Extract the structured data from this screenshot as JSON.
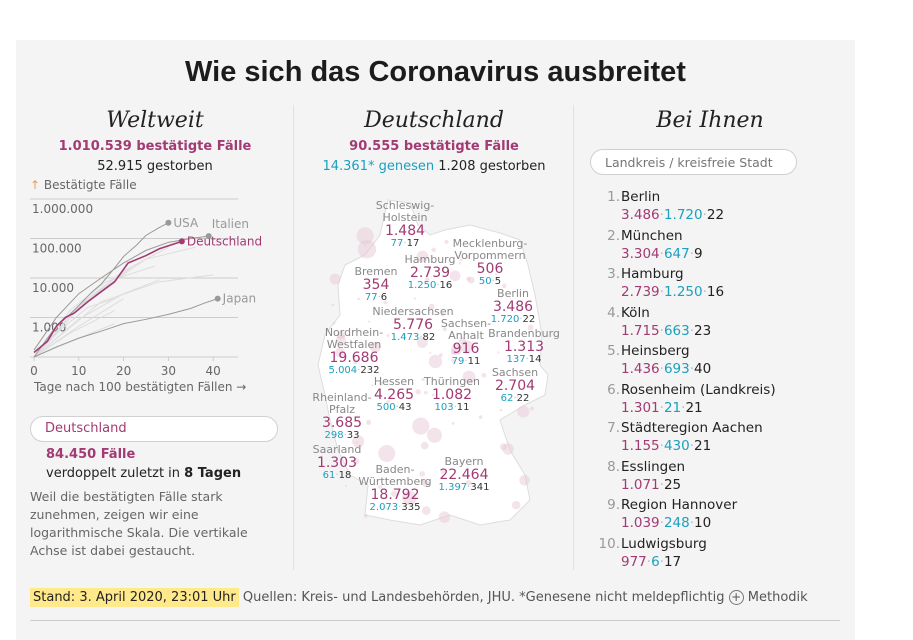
{
  "title": "Wie sich das Coronavirus ausbreitet",
  "weltweit": {
    "heading": "Weltweit",
    "cases": "1.010.539 bestätigte Fälle",
    "deaths": "52.915 gestorben",
    "country_select": "Deutschland",
    "country_cases": "84.450 Fälle",
    "doubling_prefix": "verdoppelt zuletzt in ",
    "doubling_value": "8 Tagen",
    "note": "Weil die bestätigten Fälle stark zunehmen, zeigen wir eine logarithmische Skala. Die vertikale Achse ist dabei gestaucht."
  },
  "chart_data": {
    "type": "line",
    "ylabel": "Bestätigte Fälle",
    "ylabel_icon": "arrow-up-icon",
    "xlabel": "Tage nach 100 bestätigten Fällen →",
    "yscale": "log",
    "ylim": [
      100,
      1000000
    ],
    "xlim": [
      0,
      46
    ],
    "yticks": [
      {
        "v": 1000,
        "label": "1.000"
      },
      {
        "v": 10000,
        "label": "10.000"
      },
      {
        "v": 100000,
        "label": "100.000"
      },
      {
        "v": 1000000,
        "label": "1.000.000"
      }
    ],
    "xticks": [
      0,
      10,
      20,
      30,
      40
    ],
    "grid": true,
    "highlight_color": "#a23a73",
    "label_color": "#999999",
    "series": [
      {
        "name": "USA",
        "x": [
          0,
          3,
          5,
          8,
          10,
          13,
          15,
          18,
          20,
          23,
          25,
          28,
          30
        ],
        "y": [
          100,
          300,
          600,
          1200,
          2000,
          4500,
          7000,
          18000,
          35000,
          70000,
          120000,
          190000,
          250000
        ]
      },
      {
        "name": "Italien",
        "x": [
          0,
          5,
          10,
          15,
          20,
          25,
          30,
          35,
          39
        ],
        "y": [
          150,
          1000,
          4000,
          10000,
          24000,
          50000,
          80000,
          100000,
          115000
        ]
      },
      {
        "name": "Deutschland",
        "x": [
          0,
          3,
          5,
          7,
          9,
          12,
          15,
          18,
          21,
          25,
          28,
          33
        ],
        "y": [
          130,
          250,
          600,
          1000,
          1300,
          2500,
          4500,
          8000,
          24000,
          37000,
          55000,
          84450
        ]
      },
      {
        "name": "Japan",
        "x": [
          0,
          5,
          10,
          15,
          20,
          25,
          30,
          35,
          38,
          41
        ],
        "y": [
          100,
          180,
          300,
          450,
          700,
          900,
          1200,
          1700,
          2300,
          3000
        ]
      },
      {
        "x": [
          0,
          10,
          20,
          30
        ],
        "y": [
          100,
          2000,
          15000,
          60000
        ]
      },
      {
        "x": [
          0,
          8,
          16,
          27
        ],
        "y": [
          100,
          1500,
          8000,
          20000
        ]
      },
      {
        "x": [
          0,
          10,
          20,
          28
        ],
        "y": [
          100,
          900,
          4000,
          9000
        ]
      },
      {
        "x": [
          0,
          6,
          14,
          22
        ],
        "y": [
          100,
          800,
          4000,
          20000
        ]
      },
      {
        "x": [
          0,
          10,
          20
        ],
        "y": [
          100,
          600,
          3000
        ]
      },
      {
        "x": [
          0,
          8,
          18
        ],
        "y": [
          100,
          400,
          1500
        ]
      },
      {
        "x": [
          0,
          12,
          25,
          36
        ],
        "y": [
          100,
          3000,
          30000,
          60000
        ]
      },
      {
        "x": [
          0,
          10,
          18
        ],
        "y": [
          100,
          300,
          700
        ]
      },
      {
        "x": [
          0,
          15,
          28,
          40
        ],
        "y": [
          100,
          2500,
          8000,
          12000
        ]
      },
      {
        "x": [
          0,
          6,
          12,
          18
        ],
        "y": [
          100,
          500,
          1800,
          3000
        ]
      }
    ]
  },
  "deutschland": {
    "heading": "Deutschland",
    "cases": "90.555 bestätigte Fälle",
    "recovered": "14.361* genesen",
    "deaths": "1.208 gestorben",
    "states": [
      {
        "name": "Schleswig-Holstein",
        "cases": "1.484",
        "rec": "77",
        "dead": "17"
      },
      {
        "name": "Hamburg",
        "cases": "2.739",
        "rec": "1.250",
        "dead": "16"
      },
      {
        "name": "Bremen",
        "cases": "354",
        "rec": "77",
        "dead": "6"
      },
      {
        "name": "Mecklenburg-Vorpommern",
        "cases": "506",
        "rec": "50",
        "dead": "5"
      },
      {
        "name": "Berlin",
        "cases": "3.486",
        "rec": "1.720",
        "dead": "22"
      },
      {
        "name": "Niedersachsen",
        "cases": "5.776",
        "rec": "1.473",
        "dead": "82"
      },
      {
        "name": "Sachsen-Anhalt",
        "cases": "916",
        "rec": "79",
        "dead": "11"
      },
      {
        "name": "Brandenburg",
        "cases": "1.313",
        "rec": "137",
        "dead": "14"
      },
      {
        "name": "Nordrhein-Westfalen",
        "cases": "19.686",
        "rec": "5.004",
        "dead": "232"
      },
      {
        "name": "Hessen",
        "cases": "4.265",
        "rec": "500",
        "dead": "43"
      },
      {
        "name": "Thüringen",
        "cases": "1.082",
        "rec": "103",
        "dead": "11"
      },
      {
        "name": "Sachsen",
        "cases": "2.704",
        "rec": "62",
        "dead": "22"
      },
      {
        "name": "Rheinland-Pfalz",
        "cases": "3.685",
        "rec": "298",
        "dead": "33"
      },
      {
        "name": "Saarland",
        "cases": "1.303",
        "rec": "61",
        "dead": "18"
      },
      {
        "name": "Baden-Württemberg",
        "cases": "18.792",
        "rec": "2.073",
        "dead": "335"
      },
      {
        "name": "Bayern",
        "cases": "22.464",
        "rec": "1.397",
        "dead": "341"
      }
    ]
  },
  "bei_ihnen": {
    "heading": "Bei Ihnen",
    "search_placeholder": "Landkreis / kreisfreie Stadt",
    "items": [
      {
        "rank": "1.",
        "name": "Berlin",
        "vals": [
          "3.486",
          "1.720",
          "22"
        ]
      },
      {
        "rank": "2.",
        "name": "München",
        "vals": [
          "3.304",
          "647",
          "9"
        ]
      },
      {
        "rank": "3.",
        "name": "Hamburg",
        "vals": [
          "2.739",
          "1.250",
          "16"
        ]
      },
      {
        "rank": "4.",
        "name": "Köln",
        "vals": [
          "1.715",
          "663",
          "23"
        ]
      },
      {
        "rank": "5.",
        "name": "Heinsberg",
        "vals": [
          "1.436",
          "693",
          "40"
        ]
      },
      {
        "rank": "6.",
        "name": "Rosenheim (Landkreis)",
        "vals": [
          "1.301",
          "21",
          "21"
        ]
      },
      {
        "rank": "7.",
        "name": "Städteregion Aachen",
        "vals": [
          "1.155",
          "430",
          "21"
        ]
      },
      {
        "rank": "8.",
        "name": "Esslingen",
        "vals": [
          "1.071",
          null,
          "25"
        ]
      },
      {
        "rank": "9.",
        "name": "Region Hannover",
        "vals": [
          "1.039",
          "248",
          "10"
        ]
      },
      {
        "rank": "10.",
        "name": "Ludwigsburg",
        "vals": [
          "977",
          "6",
          "17"
        ]
      }
    ]
  },
  "footer": {
    "stand": "Stand: 3. April 2020, 23:01 Uhr",
    "sources": "Quellen: Kreis- und Landesbehörden, JHU. *Genesene nicht meldepflichtig",
    "methodik": "Methodik",
    "methodik_icon": "plus-circle-icon"
  },
  "colors": {
    "cases": "#a23a73",
    "recovered": "#1aa0c0",
    "deaths": "#333333",
    "highlight": "#ffe98a"
  }
}
